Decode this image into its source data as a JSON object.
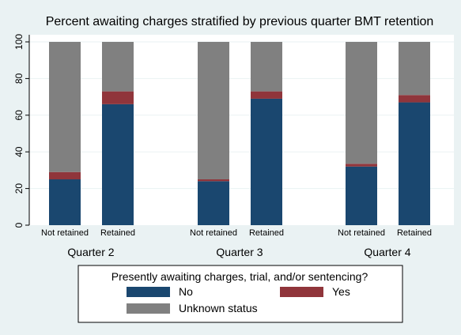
{
  "chart_data": {
    "type": "bar",
    "stacked": true,
    "title": "Percent awaiting charges stratified by previous quarter BMT retention",
    "ylim": [
      0,
      100
    ],
    "yticks": [
      0,
      20,
      40,
      60,
      80,
      100
    ],
    "grid": true,
    "groups": [
      {
        "label": "Quarter 2",
        "bars": [
          {
            "label": "Not retained",
            "values": [
              25,
              4,
              71
            ]
          },
          {
            "label": "Retained",
            "values": [
              66,
              7,
              27
            ]
          }
        ]
      },
      {
        "label": "Quarter 3",
        "bars": [
          {
            "label": "Not retained",
            "values": [
              24,
              1,
              75
            ]
          },
          {
            "label": "Retained",
            "values": [
              69,
              4,
              27
            ]
          }
        ]
      },
      {
        "label": "Quarter 4",
        "bars": [
          {
            "label": "Not retained",
            "values": [
              32,
              1.5,
              66.5
            ]
          },
          {
            "label": "Retained",
            "values": [
              67,
              4,
              29
            ]
          }
        ]
      }
    ],
    "series": [
      {
        "name": "No",
        "color": "#1a476f"
      },
      {
        "name": "Yes",
        "color": "#90353b"
      },
      {
        "name": "Unknown status",
        "color": "#808080"
      }
    ],
    "legend": {
      "title": "Presently awaiting charges, trial, and/or sentencing?",
      "position": "bottom"
    }
  }
}
